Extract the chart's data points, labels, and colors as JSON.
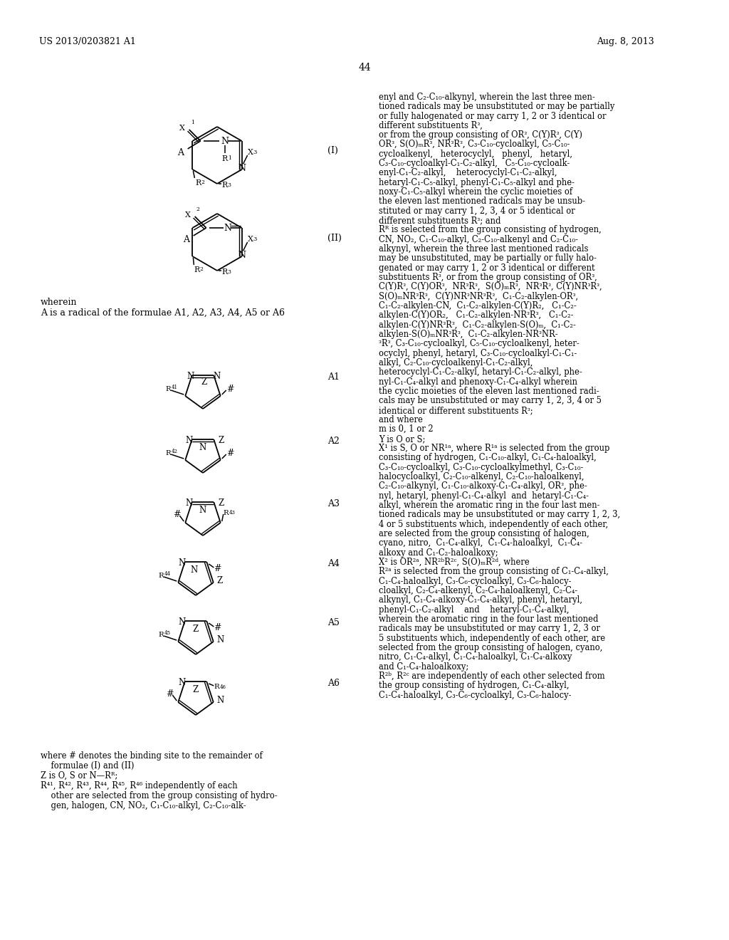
{
  "page_header_left": "US 2013/0203821 A1",
  "page_header_right": "Aug. 8, 2013",
  "page_number": "44",
  "bg": "#ffffff"
}
